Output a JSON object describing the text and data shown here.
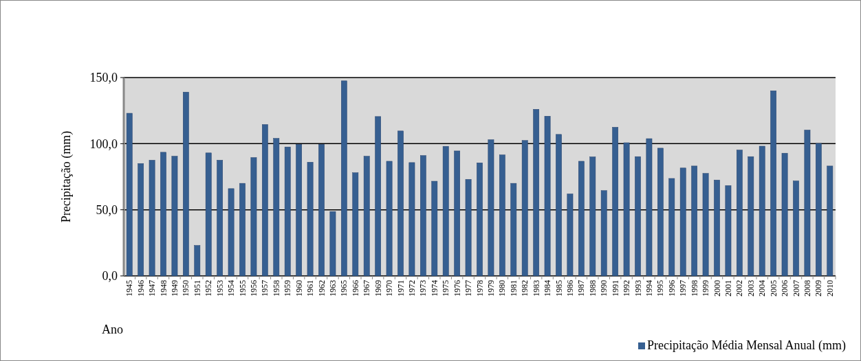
{
  "chart_data": {
    "type": "bar",
    "xlabel": "Ano",
    "ylabel": "Precipitação (mm)",
    "categories": [
      "1945",
      "1946",
      "1947",
      "1948",
      "1949",
      "1950",
      "1951",
      "1952",
      "1953",
      "1954",
      "1955",
      "1956",
      "1957",
      "1958",
      "1959",
      "1960",
      "1961",
      "1962",
      "1963",
      "1965",
      "1966",
      "1967",
      "1969",
      "1970",
      "1971",
      "1972",
      "1973",
      "1974",
      "1975",
      "1976",
      "1977",
      "1978",
      "1979",
      "1980",
      "1981",
      "1982",
      "1983",
      "1984",
      "1985",
      "1986",
      "1987",
      "1988",
      "1990",
      "1991",
      "1992",
      "1993",
      "1994",
      "1995",
      "1996",
      "1997",
      "1998",
      "1999",
      "2000",
      "2001",
      "2002",
      "2003",
      "2004",
      "2005",
      "2006",
      "2007",
      "2008",
      "2009",
      "2010"
    ],
    "series": [
      {
        "name": "Precipitação Média Mensal Anual (mm)",
        "color": "#365f91",
        "values": [
          123,
          85,
          87.5,
          93.5,
          90.5,
          139,
          23,
          93,
          87.5,
          66,
          70,
          89.5,
          114.5,
          104,
          97.5,
          99.5,
          86,
          99.5,
          48.7,
          147.5,
          78,
          90.5,
          120.5,
          86.7,
          109.6,
          85.7,
          91,
          71.6,
          98,
          94.5,
          73,
          85.5,
          103,
          91.5,
          70,
          102.4,
          126,
          120.8,
          107,
          62,
          86.7,
          90,
          64.5,
          112.4,
          100.7,
          90.2,
          103.8,
          96.6,
          73.7,
          81.6,
          83.1,
          77.5,
          72.5,
          68.3,
          95.2,
          90.2,
          98.1,
          140,
          92.8,
          71.8,
          110.3,
          100.2,
          83.1
        ]
      }
    ],
    "ylim": [
      0,
      150
    ],
    "yticks": [
      {
        "value": 0,
        "label": "0,0"
      },
      {
        "value": 50,
        "label": "50,0"
      },
      {
        "value": 100,
        "label": "100,0"
      },
      {
        "value": 150,
        "label": "150,0"
      }
    ],
    "grid": "y",
    "legend": "bottom right"
  }
}
